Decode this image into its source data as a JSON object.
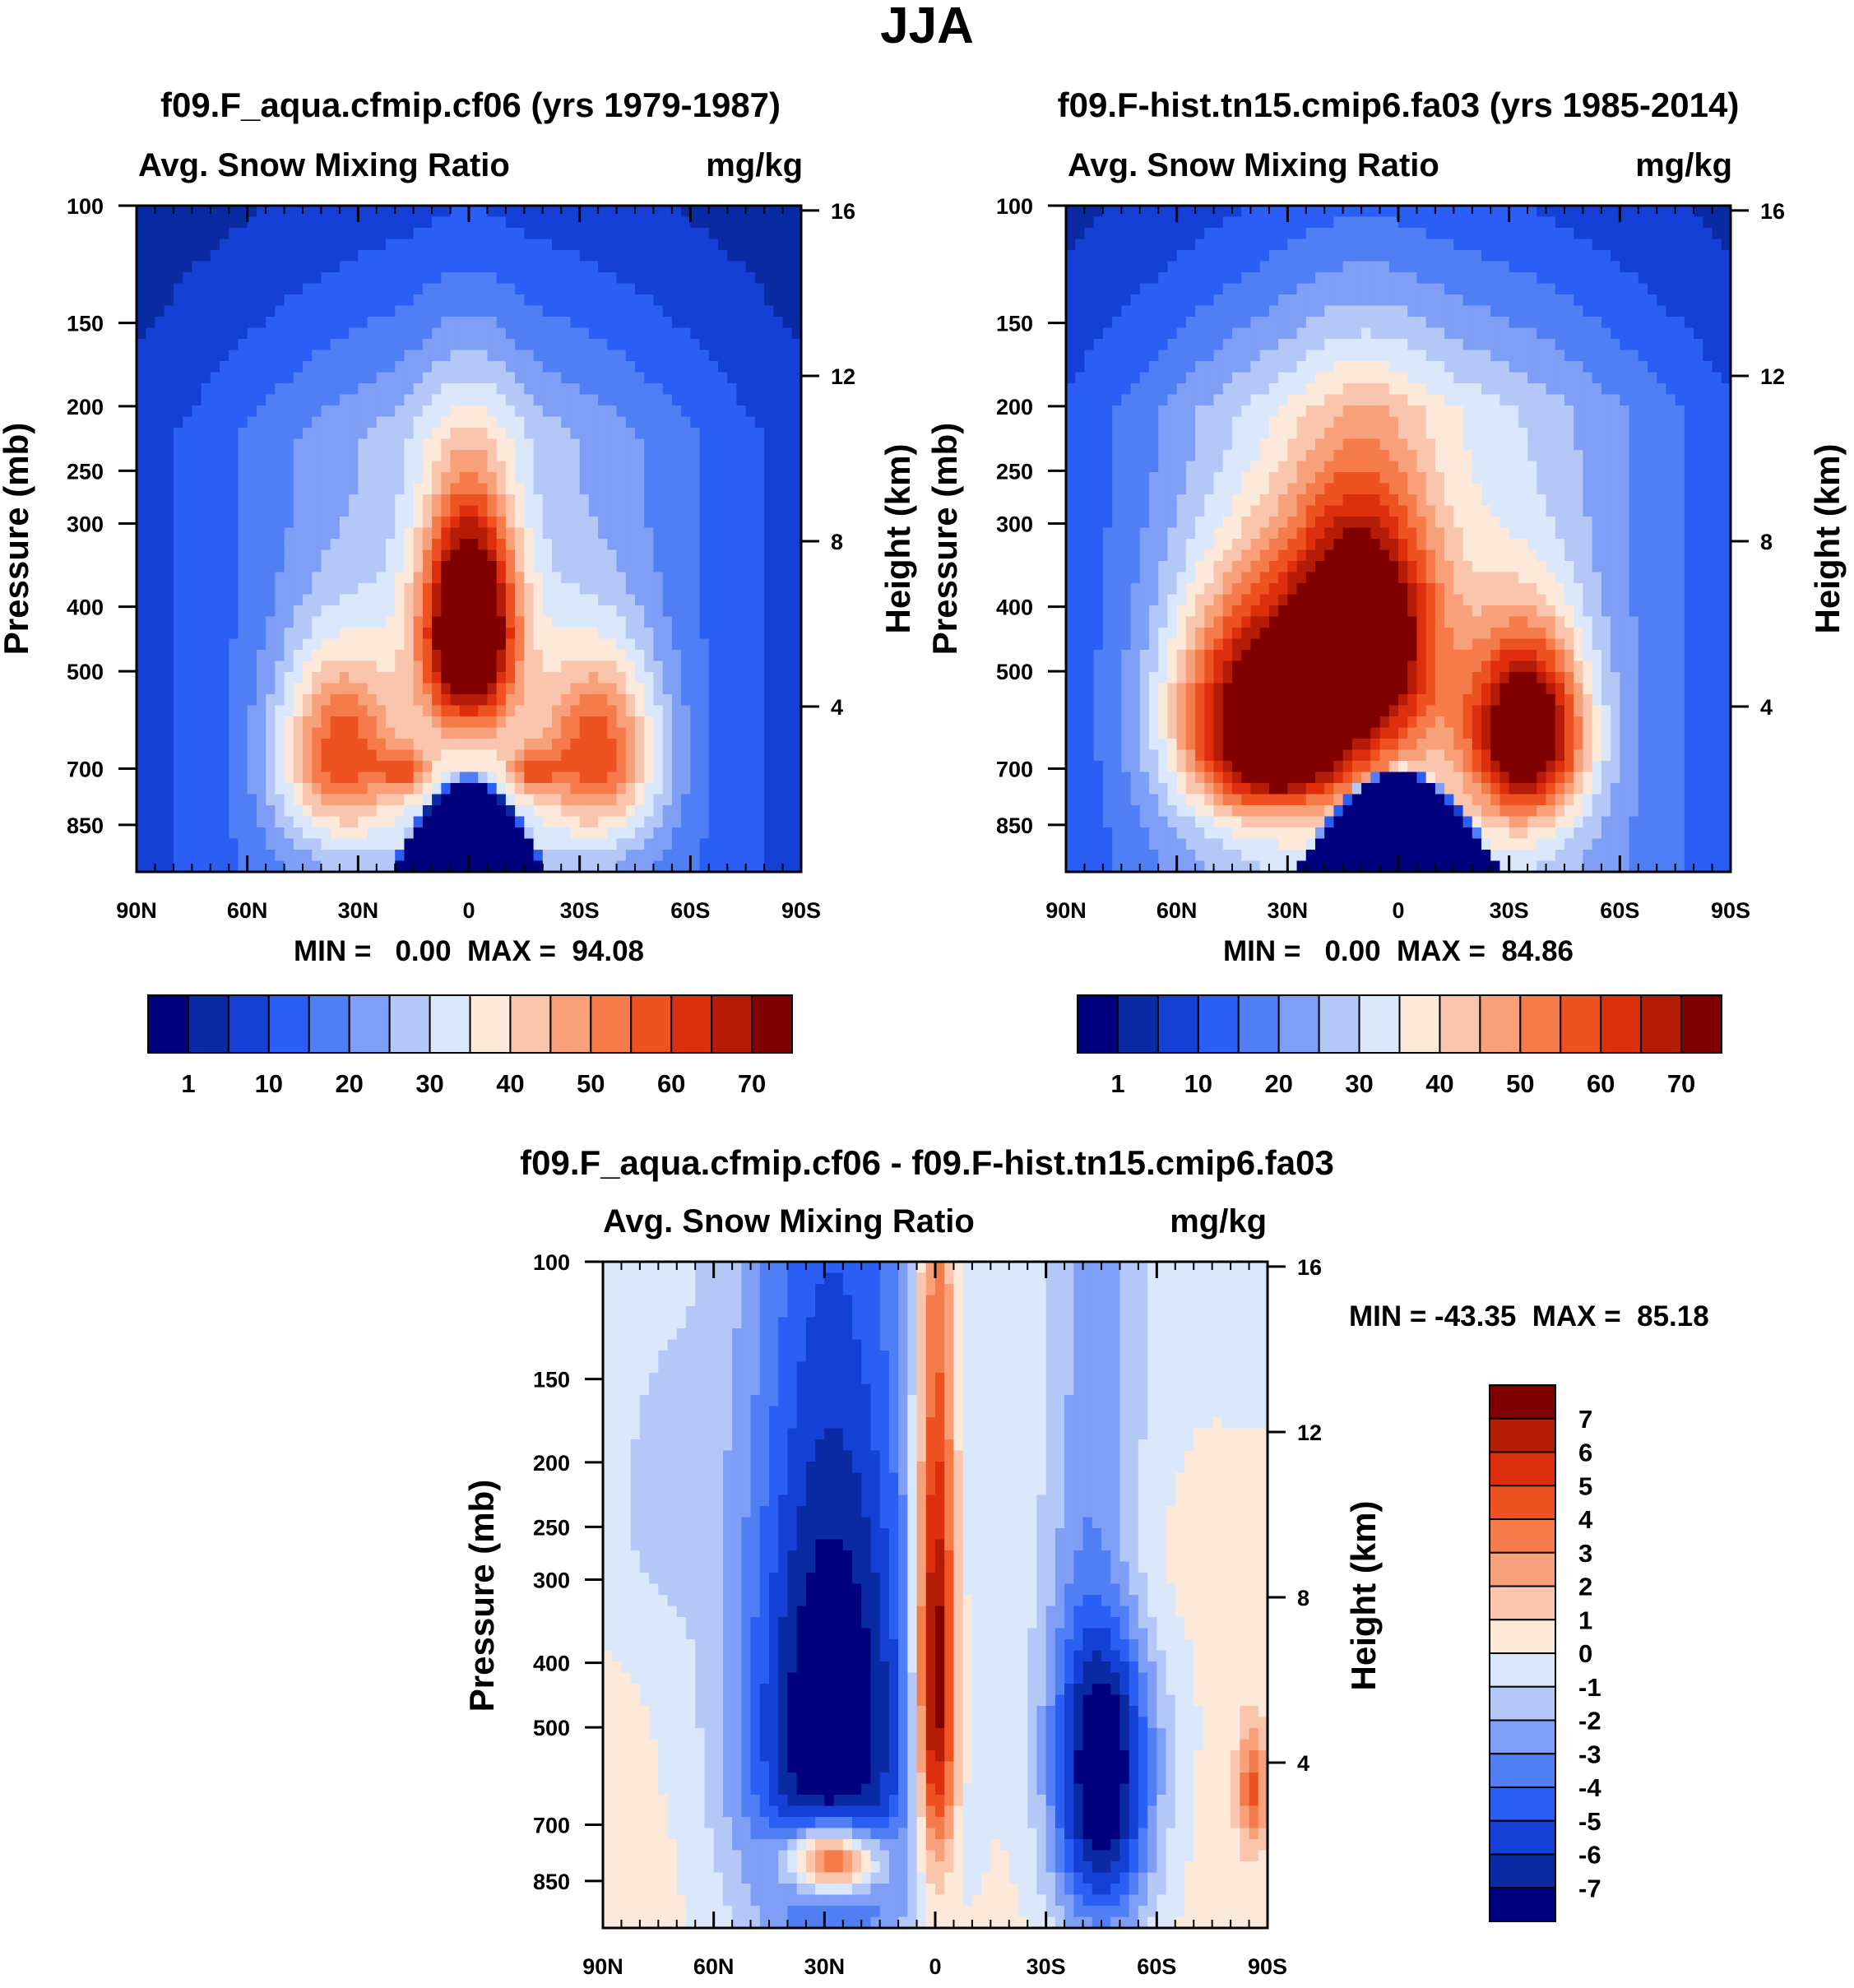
{
  "figure": {
    "main_title": "JJA"
  },
  "chart_data": [
    {
      "id": "p1",
      "type": "heatmap",
      "title": "f09.F_aqua.cfmip.cf06 (yrs 1979-1987)",
      "variable": "Avg. Snow Mixing Ratio",
      "units": "mg/kg",
      "xlabel": "",
      "ylabel": "Pressure (mb)",
      "ylabel_right": "Height (km)",
      "x_ticks": [
        {
          "value": -90,
          "label": "90N"
        },
        {
          "value": -60,
          "label": "60N"
        },
        {
          "value": -30,
          "label": "30N"
        },
        {
          "value": 0,
          "label": "0"
        },
        {
          "value": 30,
          "label": "30S"
        },
        {
          "value": 60,
          "label": "60S"
        },
        {
          "value": 90,
          "label": "90S"
        }
      ],
      "y_ticks": [
        100,
        150,
        200,
        250,
        300,
        400,
        500,
        700,
        850
      ],
      "y_right_ticks": [
        16,
        12,
        8,
        4
      ],
      "ylim": [
        1000,
        100
      ],
      "min_label": "MIN =   0.00  MAX =  94.08",
      "min": 0.0,
      "max": 94.08,
      "field": {
        "centers": [
          {
            "lat": 0,
            "p": 430,
            "amp": 68,
            "slat": 9,
            "sp": 120
          },
          {
            "lat": -35,
            "p": 660,
            "amp": 36,
            "slat": 12,
            "sp": 150
          },
          {
            "lat": 35,
            "p": 660,
            "amp": 36,
            "slat": 12,
            "sp": 150
          },
          {
            "lat": -17,
            "p": 705,
            "amp": 20,
            "slat": 5,
            "sp": 40
          },
          {
            "lat": 17,
            "p": 705,
            "amp": 20,
            "slat": 5,
            "sp": 40
          }
        ],
        "background": {
          "amp": 28,
          "lat_width": 55,
          "p_ref": 150
        },
        "dry_dome": {
          "half_width": 22,
          "top": 710
        }
      }
    },
    {
      "id": "p2",
      "type": "heatmap",
      "title": "f09.F-hist.tn15.cmip6.fa03 (yrs 1985-2014)",
      "variable": "Avg. Snow Mixing Ratio",
      "units": "mg/kg",
      "xlabel": "",
      "ylabel": "Pressure (mb)",
      "ylabel_right": "Height (km)",
      "x_ticks": [
        {
          "value": -90,
          "label": "90N"
        },
        {
          "value": -60,
          "label": "60N"
        },
        {
          "value": -30,
          "label": "30N"
        },
        {
          "value": 0,
          "label": "0"
        },
        {
          "value": 30,
          "label": "30S"
        },
        {
          "value": 60,
          "label": "60S"
        },
        {
          "value": 90,
          "label": "90S"
        }
      ],
      "y_ticks": [
        100,
        150,
        200,
        250,
        300,
        400,
        500,
        700,
        850
      ],
      "y_right_ticks": [
        16,
        12,
        8,
        4
      ],
      "ylim": [
        1000,
        100
      ],
      "min_label": "MIN =   0.00  MAX =  84.86",
      "min": 0.0,
      "max": 84.86,
      "field": {
        "centers": [
          {
            "lat": -10,
            "p": 450,
            "amp": 58,
            "slat": 14,
            "sp": 140
          },
          {
            "lat": -40,
            "p": 580,
            "amp": 50,
            "slat": 16,
            "sp": 160
          },
          {
            "lat": 35,
            "p": 620,
            "amp": 58,
            "slat": 11,
            "sp": 140
          },
          {
            "lat": -30,
            "p": 700,
            "amp": 20,
            "slat": 12,
            "sp": 60
          }
        ],
        "background": {
          "amp": 34,
          "lat_width": 60,
          "p_ref": 140
        },
        "dry_dome": {
          "half_width": 28,
          "top": 690
        }
      }
    },
    {
      "id": "p3",
      "type": "heatmap",
      "title": "f09.F_aqua.cfmip.cf06 - f09.F-hist.tn15.cmip6.fa03",
      "variable": "Avg. Snow Mixing Ratio",
      "units": "mg/kg",
      "xlabel": "",
      "ylabel": "Pressure (mb)",
      "ylabel_right": "Height (km)",
      "x_ticks": [
        {
          "value": -90,
          "label": "90N"
        },
        {
          "value": -60,
          "label": "60N"
        },
        {
          "value": -30,
          "label": "30N"
        },
        {
          "value": 0,
          "label": "0"
        },
        {
          "value": 30,
          "label": "30S"
        },
        {
          "value": 60,
          "label": "60S"
        },
        {
          "value": 90,
          "label": "90S"
        }
      ],
      "y_ticks": [
        100,
        150,
        200,
        250,
        300,
        400,
        500,
        700,
        850
      ],
      "y_right_ticks": [
        16,
        12,
        8,
        4
      ],
      "ylim": [
        1000,
        100
      ],
      "min_label": "MIN = -43.35  MAX =  85.18",
      "min": -43.35,
      "max": 85.18,
      "field": {
        "centers": [
          {
            "lat": -28,
            "p": 520,
            "amp": -9,
            "slat": 18,
            "sp": 380
          },
          {
            "lat": 45,
            "p": 580,
            "amp": -9,
            "slat": 10,
            "sp": 300
          },
          {
            "lat": 0,
            "p": 420,
            "amp": 10,
            "slat": 4,
            "sp": 260
          },
          {
            "lat": -28,
            "p": 790,
            "amp": 10,
            "slat": 9,
            "sp": 70
          },
          {
            "lat": 50,
            "p": 290,
            "amp": 2.4,
            "slat": 10,
            "sp": 90
          },
          {
            "lat": -75,
            "p": 230,
            "amp": -1.3,
            "slat": 10,
            "sp": 90
          },
          {
            "lat": 86,
            "p": 620,
            "amp": 4,
            "slat": 3,
            "sp": 90
          }
        ],
        "background": {
          "amp": 0.5,
          "lat_width": 120,
          "p_ref": 500
        },
        "dry_dome": null
      }
    }
  ],
  "colorbar_abs": {
    "labels": [
      "1",
      "10",
      "20",
      "30",
      "40",
      "50",
      "60",
      "70"
    ],
    "levels": [
      1,
      5,
      10,
      15,
      20,
      25,
      30,
      35,
      40,
      45,
      50,
      55,
      60,
      65,
      70
    ]
  },
  "colorbar_diff": {
    "labels": [
      "7",
      "6",
      "5",
      "4",
      "3",
      "2",
      "1",
      "0",
      "-1",
      "-2",
      "-3",
      "-4",
      "-5",
      "-6",
      "-7"
    ],
    "levels": [
      -7,
      -6,
      -5,
      -4,
      -3,
      -2,
      -1,
      0,
      1,
      2,
      3,
      4,
      5,
      6,
      7
    ]
  },
  "colors": [
    "#00007f",
    "#0a2aa3",
    "#1540d6",
    "#2b5ef5",
    "#4f7ef5",
    "#7e9ff5",
    "#b3c8f7",
    "#dbe8fb",
    "#fde9d9",
    "#f9c5ad",
    "#f7a07a",
    "#f67b4a",
    "#ef5221",
    "#dd2f0d",
    "#b41c08",
    "#800000"
  ]
}
